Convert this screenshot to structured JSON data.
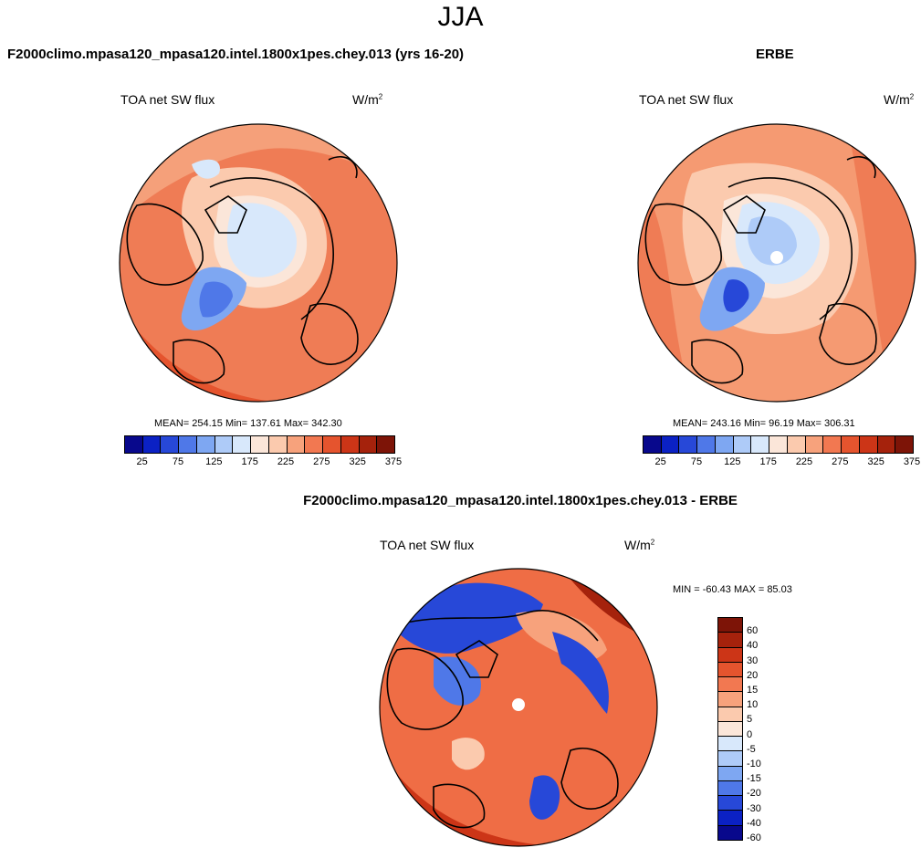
{
  "figure_title": "JJA",
  "panels": [
    {
      "case_title": "F2000climo.mpasa120_mpasa120.intel.1800x1pes.chey.013 (yrs 16-20)",
      "variable": "TOA net SW flux",
      "units": "W/m",
      "units_exp": "2",
      "stats": "MEAN= 254.15  Min= 137.61  Max= 342.30",
      "colorbar_ticks": [
        "25",
        "75",
        "125",
        "175",
        "225",
        "275",
        "325",
        "375"
      ]
    },
    {
      "case_title": "ERBE",
      "variable": "TOA net SW flux",
      "units": "W/m",
      "units_exp": "2",
      "stats": "MEAN= 243.16  Min=  96.19  Max= 306.31",
      "colorbar_ticks": [
        "25",
        "75",
        "125",
        "175",
        "225",
        "275",
        "325",
        "375"
      ]
    },
    {
      "case_title": "F2000climo.mpasa120_mpasa120.intel.1800x1pes.chey.013 - ERBE",
      "variable": "TOA net SW flux",
      "units": "W/m",
      "units_exp": "2",
      "stats": "MIN = -60.43 MAX =  85.03",
      "colorbar_ticks": [
        "60",
        "40",
        "30",
        "20",
        "15",
        "10",
        "5",
        "0",
        "-5",
        "-10",
        "-15",
        "-20",
        "-30",
        "-40",
        "-60"
      ]
    }
  ],
  "colors": {
    "abs_scale": [
      "#08088c",
      "#0b21c4",
      "#2748d8",
      "#4f78e8",
      "#7ea7f2",
      "#aecbf8",
      "#d8e8fb",
      "#fbe6d9",
      "#fbcaae",
      "#f7a27c",
      "#f27851",
      "#e5542e",
      "#cc3517",
      "#a5220c",
      "#7d1407"
    ],
    "diff_scale": [
      "#7d1407",
      "#a5220c",
      "#cc3517",
      "#e5542e",
      "#f27851",
      "#f7a27c",
      "#fbcaae",
      "#fbe6d9",
      "#d8e8fb",
      "#aecbf8",
      "#7ea7f2",
      "#4f78e8",
      "#2748d8",
      "#0b21c4",
      "#08088c"
    ],
    "ocean_abs1": "#f08a62",
    "ocean_abs2": "#f5a07a",
    "ocean_diff": "#ef6d45"
  }
}
